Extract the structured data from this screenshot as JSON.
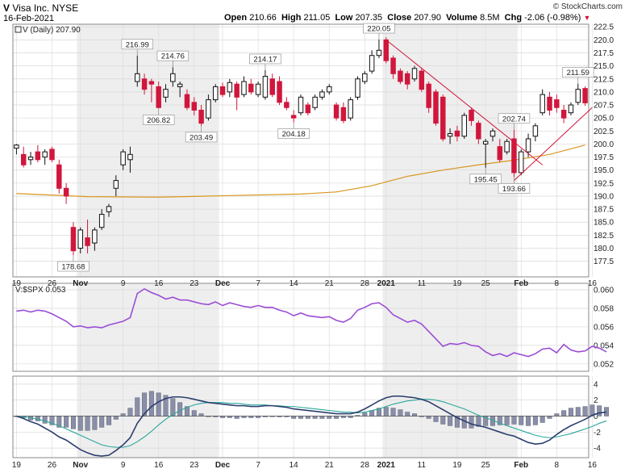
{
  "header": {
    "symbol": "V",
    "company": "Visa Inc.",
    "exchange": "NYSE",
    "date": "16-Feb-2021",
    "source": "© StockCharts.com",
    "open_label": "Open",
    "open": "210.66",
    "high_label": "High",
    "high": "211.05",
    "low_label": "Low",
    "low": "207.35",
    "close_label": "Close",
    "close": "207.90",
    "volume_label": "Volume",
    "volume": "8.5M",
    "chg_label": "Chg",
    "chg": "-2.06 (-0.98%)",
    "chg_icon": "down-triangle-icon"
  },
  "colors": {
    "up": "#111111",
    "down": "#d1163c",
    "ma": "#d9961e",
    "ratio": "#9b4dd6",
    "macd": "#2c3e6e",
    "signal": "#2aa89a",
    "hist": "#8a8fa8",
    "band": "#eeeeee",
    "trend": "#d1163c"
  },
  "chart_data": [
    {
      "type": "candlestick",
      "title": "V (Daily) 207.90",
      "legend_prefix": "V (Daily)",
      "legend_value": "207.90",
      "ylim": [
        174.5,
        223.0
      ],
      "yticks": [
        177.5,
        180.0,
        182.5,
        185.0,
        187.5,
        190.0,
        192.5,
        195.0,
        197.5,
        200.0,
        202.5,
        205.0,
        207.5,
        210.0,
        212.5,
        215.0,
        217.5,
        220.0,
        222.5
      ],
      "candles": [
        {
          "o": 199.2,
          "h": 200.0,
          "l": 198.0,
          "c": 199.8
        },
        {
          "o": 198.0,
          "h": 199.5,
          "l": 195.5,
          "c": 196.0
        },
        {
          "o": 197.0,
          "h": 198.5,
          "l": 196.0,
          "c": 197.5
        },
        {
          "o": 198.5,
          "h": 199.8,
          "l": 196.5,
          "c": 197.0
        },
        {
          "o": 197.5,
          "h": 199.0,
          "l": 196.0,
          "c": 198.5
        },
        {
          "o": 199.0,
          "h": 199.5,
          "l": 196.5,
          "c": 197.0
        },
        {
          "o": 196.0,
          "h": 197.0,
          "l": 190.5,
          "c": 191.5
        },
        {
          "o": 191.5,
          "h": 192.5,
          "l": 188.5,
          "c": 190.0
        },
        {
          "o": 184.0,
          "h": 185.0,
          "l": 178.68,
          "c": 179.5
        },
        {
          "o": 180.0,
          "h": 184.0,
          "l": 179.0,
          "c": 183.5
        },
        {
          "o": 182.0,
          "h": 185.5,
          "l": 179.0,
          "c": 180.5
        },
        {
          "o": 181.0,
          "h": 184.0,
          "l": 179.5,
          "c": 183.5
        },
        {
          "o": 184.0,
          "h": 187.5,
          "l": 183.5,
          "c": 186.5
        },
        {
          "o": 187.0,
          "h": 188.5,
          "l": 186.0,
          "c": 188.0
        },
        {
          "o": 191.5,
          "h": 194.0,
          "l": 190.0,
          "c": 193.0
        },
        {
          "o": 196.0,
          "h": 199.0,
          "l": 195.0,
          "c": 198.5
        },
        {
          "o": 197.0,
          "h": 199.5,
          "l": 194.5,
          "c": 198.0
        },
        {
          "o": 212.0,
          "h": 216.99,
          "l": 211.0,
          "c": 213.5
        },
        {
          "o": 212.5,
          "h": 213.5,
          "l": 209.5,
          "c": 210.5
        },
        {
          "o": 212.0,
          "h": 212.5,
          "l": 208.0,
          "c": 211.5
        },
        {
          "o": 211.0,
          "h": 212.0,
          "l": 206.82,
          "c": 207.0
        },
        {
          "o": 209.0,
          "h": 211.5,
          "l": 208.0,
          "c": 210.5
        },
        {
          "o": 212.0,
          "h": 214.76,
          "l": 211.0,
          "c": 213.5
        },
        {
          "o": 211.0,
          "h": 212.0,
          "l": 209.0,
          "c": 211.5
        },
        {
          "o": 209.5,
          "h": 210.5,
          "l": 206.5,
          "c": 207.0
        },
        {
          "o": 208.0,
          "h": 209.0,
          "l": 205.5,
          "c": 206.5
        },
        {
          "o": 206.5,
          "h": 207.5,
          "l": 203.49,
          "c": 204.0
        },
        {
          "o": 205.0,
          "h": 209.5,
          "l": 204.5,
          "c": 208.5
        },
        {
          "o": 208.5,
          "h": 211.5,
          "l": 208.0,
          "c": 211.0
        },
        {
          "o": 211.0,
          "h": 211.8,
          "l": 209.0,
          "c": 209.5
        },
        {
          "o": 210.0,
          "h": 212.5,
          "l": 209.0,
          "c": 211.8
        },
        {
          "o": 211.5,
          "h": 212.0,
          "l": 206.5,
          "c": 209.0
        },
        {
          "o": 209.5,
          "h": 213.0,
          "l": 209.0,
          "c": 212.0
        },
        {
          "o": 211.5,
          "h": 212.5,
          "l": 209.5,
          "c": 210.0
        },
        {
          "o": 209.5,
          "h": 212.0,
          "l": 209.0,
          "c": 211.5
        },
        {
          "o": 209.0,
          "h": 214.17,
          "l": 208.5,
          "c": 213.0
        },
        {
          "o": 212.5,
          "h": 213.5,
          "l": 209.0,
          "c": 209.5
        },
        {
          "o": 212.0,
          "h": 213.0,
          "l": 207.5,
          "c": 208.0
        },
        {
          "o": 208.0,
          "h": 209.0,
          "l": 206.5,
          "c": 207.0
        },
        {
          "o": 205.5,
          "h": 206.5,
          "l": 204.18,
          "c": 205.0
        },
        {
          "o": 206.0,
          "h": 209.5,
          "l": 205.5,
          "c": 209.0
        },
        {
          "o": 207.5,
          "h": 208.0,
          "l": 205.5,
          "c": 206.0
        },
        {
          "o": 207.0,
          "h": 209.5,
          "l": 206.5,
          "c": 209.0
        },
        {
          "o": 209.0,
          "h": 210.5,
          "l": 208.5,
          "c": 210.0
        },
        {
          "o": 210.0,
          "h": 211.5,
          "l": 209.5,
          "c": 211.0
        },
        {
          "o": 207.5,
          "h": 208.0,
          "l": 204.5,
          "c": 205.0
        },
        {
          "o": 207.0,
          "h": 208.0,
          "l": 204.0,
          "c": 204.5
        },
        {
          "o": 205.0,
          "h": 209.0,
          "l": 204.5,
          "c": 208.5
        },
        {
          "o": 209.0,
          "h": 213.0,
          "l": 208.5,
          "c": 212.5
        },
        {
          "o": 212.0,
          "h": 214.0,
          "l": 211.5,
          "c": 213.5
        },
        {
          "o": 214.0,
          "h": 218.0,
          "l": 213.5,
          "c": 217.0
        },
        {
          "o": 217.0,
          "h": 220.05,
          "l": 216.5,
          "c": 218.0
        },
        {
          "o": 220.0,
          "h": 220.5,
          "l": 215.5,
          "c": 216.0
        },
        {
          "o": 216.5,
          "h": 217.0,
          "l": 212.5,
          "c": 213.5
        },
        {
          "o": 214.0,
          "h": 214.5,
          "l": 211.5,
          "c": 212.0
        },
        {
          "o": 213.5,
          "h": 214.0,
          "l": 210.5,
          "c": 211.5
        },
        {
          "o": 212.5,
          "h": 215.0,
          "l": 212.0,
          "c": 214.5
        },
        {
          "o": 214.0,
          "h": 214.5,
          "l": 210.0,
          "c": 210.5
        },
        {
          "o": 211.5,
          "h": 212.0,
          "l": 206.0,
          "c": 207.0
        },
        {
          "o": 210.0,
          "h": 210.5,
          "l": 203.5,
          "c": 204.0
        },
        {
          "o": 209.0,
          "h": 209.5,
          "l": 200.5,
          "c": 201.0
        },
        {
          "o": 201.5,
          "h": 203.0,
          "l": 200.0,
          "c": 202.0
        },
        {
          "o": 202.5,
          "h": 203.5,
          "l": 200.5,
          "c": 201.5
        },
        {
          "o": 201.5,
          "h": 206.0,
          "l": 201.0,
          "c": 205.5
        },
        {
          "o": 206.5,
          "h": 207.0,
          "l": 203.5,
          "c": 204.5
        },
        {
          "o": 204.0,
          "h": 204.5,
          "l": 200.0,
          "c": 201.0
        },
        {
          "o": 200.0,
          "h": 201.0,
          "l": 195.45,
          "c": 200.5
        },
        {
          "o": 201.5,
          "h": 203.0,
          "l": 200.5,
          "c": 202.5
        },
        {
          "o": 199.5,
          "h": 201.0,
          "l": 196.5,
          "c": 197.0
        },
        {
          "o": 198.5,
          "h": 201.0,
          "l": 198.0,
          "c": 200.5
        },
        {
          "o": 201.0,
          "h": 202.74,
          "l": 193.66,
          "c": 194.5
        },
        {
          "o": 194.5,
          "h": 199.0,
          "l": 194.0,
          "c": 198.5
        },
        {
          "o": 198.5,
          "h": 202.0,
          "l": 197.5,
          "c": 201.0
        },
        {
          "o": 201.5,
          "h": 204.0,
          "l": 200.5,
          "c": 203.5
        },
        {
          "o": 206.0,
          "h": 210.5,
          "l": 205.5,
          "c": 209.5
        },
        {
          "o": 209.0,
          "h": 210.0,
          "l": 205.5,
          "c": 206.5
        },
        {
          "o": 208.5,
          "h": 209.5,
          "l": 206.0,
          "c": 207.0
        },
        {
          "o": 206.5,
          "h": 207.5,
          "l": 204.0,
          "c": 205.0
        },
        {
          "o": 206.0,
          "h": 208.0,
          "l": 205.5,
          "c": 207.5
        },
        {
          "o": 208.0,
          "h": 211.59,
          "l": 207.5,
          "c": 210.5
        },
        {
          "o": 210.66,
          "h": 211.05,
          "l": 207.35,
          "c": 207.9
        }
      ],
      "ma_line": [
        {
          "i": 0,
          "v": 190.5
        },
        {
          "i": 10,
          "v": 189.9
        },
        {
          "i": 20,
          "v": 189.8
        },
        {
          "i": 30,
          "v": 190.1
        },
        {
          "i": 40,
          "v": 190.4
        },
        {
          "i": 45,
          "v": 190.8
        },
        {
          "i": 50,
          "v": 192.0
        },
        {
          "i": 55,
          "v": 193.8
        },
        {
          "i": 60,
          "v": 195.0
        },
        {
          "i": 65,
          "v": 196.0
        },
        {
          "i": 70,
          "v": 196.9
        },
        {
          "i": 75,
          "v": 198.0
        },
        {
          "i": 80,
          "v": 199.8
        }
      ],
      "annotations": [
        {
          "i": 8,
          "price": 178.68,
          "text": "178.68",
          "pos": "below"
        },
        {
          "i": 17,
          "price": 216.99,
          "text": "216.99",
          "pos": "above"
        },
        {
          "i": 20,
          "price": 206.82,
          "text": "206.82",
          "pos": "below"
        },
        {
          "i": 22,
          "price": 214.76,
          "text": "214.76",
          "pos": "above"
        },
        {
          "i": 26,
          "price": 203.49,
          "text": "203.49",
          "pos": "below"
        },
        {
          "i": 35,
          "price": 214.17,
          "text": "214.17",
          "pos": "above"
        },
        {
          "i": 39,
          "price": 204.18,
          "text": "204.18",
          "pos": "below"
        },
        {
          "i": 51,
          "price": 220.05,
          "text": "220.05",
          "pos": "above"
        },
        {
          "i": 66,
          "price": 195.45,
          "text": "195.45",
          "pos": "below"
        },
        {
          "i": 70,
          "price": 193.66,
          "text": "193.66",
          "pos": "below"
        },
        {
          "i": 70,
          "price": 202.74,
          "text": "202.74",
          "pos": "above"
        },
        {
          "i": 79,
          "price": 211.59,
          "text": "211.59",
          "pos": "above"
        }
      ],
      "trendlines": [
        {
          "i1": 52,
          "p1": 220.0,
          "i2": 74,
          "p2": 196.0
        },
        {
          "i1": 70,
          "p1": 193.0,
          "i2": 81,
          "p2": 207.0
        }
      ]
    },
    {
      "type": "line",
      "title": "V:$SPX 0.053",
      "ylim": [
        0.0512,
        0.0607
      ],
      "yticks": [
        0.052,
        0.054,
        0.056,
        0.058,
        0.06
      ],
      "ytick_labels": [
        "0.052",
        "0.054",
        "0.056",
        "0.058",
        "0.060"
      ],
      "values": [
        0.0577,
        0.0578,
        0.0576,
        0.0578,
        0.0577,
        0.0574,
        0.057,
        0.0566,
        0.056,
        0.0561,
        0.0559,
        0.056,
        0.0559,
        0.0562,
        0.0564,
        0.0566,
        0.057,
        0.0596,
        0.0601,
        0.0597,
        0.0594,
        0.059,
        0.0592,
        0.0589,
        0.0589,
        0.0587,
        0.0585,
        0.0584,
        0.0587,
        0.0583,
        0.0586,
        0.0584,
        0.0582,
        0.0581,
        0.0583,
        0.0581,
        0.0581,
        0.0578,
        0.0576,
        0.0572,
        0.0575,
        0.0572,
        0.0571,
        0.057,
        0.0571,
        0.0567,
        0.0565,
        0.0569,
        0.0578,
        0.0581,
        0.0585,
        0.0586,
        0.0581,
        0.0573,
        0.0569,
        0.0565,
        0.0567,
        0.0563,
        0.0555,
        0.0547,
        0.0539,
        0.0542,
        0.0541,
        0.0543,
        0.054,
        0.0539,
        0.0533,
        0.0529,
        0.0531,
        0.0528,
        0.0532,
        0.053,
        0.0528,
        0.0531,
        0.0536,
        0.0537,
        0.0532,
        0.0541,
        0.0535,
        0.0533,
        0.0534,
        0.0539,
        0.0537,
        0.0533
      ]
    },
    {
      "type": "macd",
      "ylim": [
        -5.2,
        5.0
      ],
      "yticks": [
        -4,
        -2,
        0,
        2,
        4
      ],
      "macd": [
        0.0,
        -0.3,
        -0.7,
        -1.0,
        -1.5,
        -2.0,
        -2.6,
        -3.0,
        -3.6,
        -4.2,
        -4.6,
        -4.9,
        -5.0,
        -4.9,
        -4.3,
        -3.6,
        -2.7,
        -0.9,
        0.3,
        1.2,
        1.8,
        2.2,
        2.4,
        2.4,
        2.3,
        2.1,
        1.9,
        1.7,
        1.6,
        1.5,
        1.4,
        1.3,
        1.3,
        1.2,
        1.2,
        1.3,
        1.3,
        1.2,
        1.1,
        0.9,
        0.8,
        0.7,
        0.6,
        0.5,
        0.4,
        0.3,
        0.3,
        0.3,
        0.5,
        0.9,
        1.4,
        1.9,
        2.3,
        2.5,
        2.5,
        2.4,
        2.3,
        2.1,
        1.8,
        1.3,
        0.8,
        0.3,
        -0.2,
        -0.6,
        -1.0,
        -1.2,
        -1.4,
        -1.7,
        -2.0,
        -2.3,
        -2.5,
        -2.9,
        -3.3,
        -3.5,
        -3.4,
        -3.0,
        -2.3,
        -1.7,
        -1.2,
        -0.8,
        -0.4,
        0.1,
        0.4,
        0.5
      ],
      "signal": [
        0.0,
        -0.1,
        -0.2,
        -0.4,
        -0.6,
        -0.9,
        -1.2,
        -1.6,
        -2.0,
        -2.4,
        -2.8,
        -3.2,
        -3.6,
        -3.8,
        -3.9,
        -3.9,
        -3.7,
        -3.2,
        -2.6,
        -1.9,
        -1.1,
        -0.4,
        0.2,
        0.7,
        1.1,
        1.4,
        1.6,
        1.7,
        1.7,
        1.7,
        1.6,
        1.6,
        1.5,
        1.4,
        1.4,
        1.4,
        1.3,
        1.3,
        1.2,
        1.2,
        1.1,
        1.0,
        0.9,
        0.8,
        0.7,
        0.6,
        0.5,
        0.5,
        0.4,
        0.5,
        0.7,
        0.9,
        1.2,
        1.5,
        1.7,
        1.9,
        2.0,
        2.1,
        2.1,
        2.0,
        1.8,
        1.5,
        1.2,
        0.9,
        0.5,
        0.1,
        -0.2,
        -0.5,
        -0.9,
        -1.2,
        -1.5,
        -1.8,
        -2.1,
        -2.4,
        -2.6,
        -2.7,
        -2.6,
        -2.4,
        -2.2,
        -1.9,
        -1.6,
        -1.3,
        -0.9,
        -0.6
      ]
    },
    {
      "type": "x-axis",
      "ticks": [
        {
          "i": 0,
          "label": "19",
          "bold": false
        },
        {
          "i": 5,
          "label": "26",
          "bold": false
        },
        {
          "i": 9,
          "label": "Nov",
          "bold": true
        },
        {
          "i": 15,
          "label": "9",
          "bold": false
        },
        {
          "i": 20,
          "label": "16",
          "bold": false
        },
        {
          "i": 25,
          "label": "23",
          "bold": false
        },
        {
          "i": 29,
          "label": "Dec",
          "bold": true
        },
        {
          "i": 34,
          "label": "7",
          "bold": false
        },
        {
          "i": 39,
          "label": "14",
          "bold": false
        },
        {
          "i": 44,
          "label": "21",
          "bold": false
        },
        {
          "i": 49,
          "label": "28",
          "bold": false
        },
        {
          "i": 52,
          "label": "2021",
          "bold": true
        },
        {
          "i": 57,
          "label": "11",
          "bold": false
        },
        {
          "i": 62,
          "label": "19",
          "bold": false
        },
        {
          "i": 66,
          "label": "25",
          "bold": false
        },
        {
          "i": 71,
          "label": "Feb",
          "bold": true
        },
        {
          "i": 76,
          "label": "8",
          "bold": false
        },
        {
          "i": 81,
          "label": "16",
          "bold": false
        }
      ],
      "shaded_ranges": [
        [
          9,
          28
        ],
        [
          52,
          70
        ]
      ]
    }
  ]
}
